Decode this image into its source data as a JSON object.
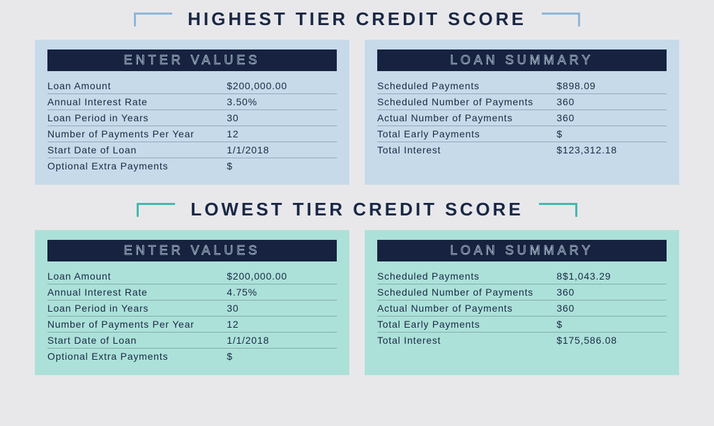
{
  "highest": {
    "title": "HIGHEST TIER CREDIT SCORE",
    "accent": "#8fb6d6",
    "panel_bg": "#c6daea",
    "enter_values": {
      "header": "ENTER VALUES",
      "rows": [
        {
          "label": "Loan Amount",
          "value": "$200,000.00"
        },
        {
          "label": "Annual Interest Rate",
          "value": "3.50%"
        },
        {
          "label": "Loan Period in Years",
          "value": "30"
        },
        {
          "label": "Number of Payments Per Year",
          "value": "12"
        },
        {
          "label": "Start Date of Loan",
          "value": "1/1/2018"
        },
        {
          "label": "Optional Extra Payments",
          "value": "$"
        }
      ]
    },
    "loan_summary": {
      "header": "LOAN SUMMARY",
      "rows": [
        {
          "label": "Scheduled Payments",
          "value": "$898.09"
        },
        {
          "label": "Scheduled Number of Payments",
          "value": "360"
        },
        {
          "label": "Actual Number of Payments",
          "value": "360"
        },
        {
          "label": "Total Early Payments",
          "value": "$"
        },
        {
          "label": "Total Interest",
          "value": "$123,312.18"
        }
      ]
    }
  },
  "lowest": {
    "title": "LOWEST TIER CREDIT SCORE",
    "accent": "#45b9b0",
    "panel_bg": "#ace1d9",
    "enter_values": {
      "header": "ENTER VALUES",
      "rows": [
        {
          "label": "Loan Amount",
          "value": "$200,000.00"
        },
        {
          "label": "Annual Interest Rate",
          "value": "4.75%"
        },
        {
          "label": "Loan Period in Years",
          "value": "30"
        },
        {
          "label": "Number of Payments Per Year",
          "value": "12"
        },
        {
          "label": "Start Date of Loan",
          "value": "1/1/2018"
        },
        {
          "label": "Optional Extra Payments",
          "value": "$"
        }
      ]
    },
    "loan_summary": {
      "header": "LOAN SUMMARY",
      "rows": [
        {
          "label": "Scheduled Payments",
          "value": "8$1,043.29"
        },
        {
          "label": "Scheduled Number of Payments",
          "value": "360"
        },
        {
          "label": "Actual Number of Payments",
          "value": "360"
        },
        {
          "label": "Total Early Payments",
          "value": "$"
        },
        {
          "label": "Total Interest",
          "value": "$175,586.08"
        }
      ]
    }
  },
  "styling": {
    "page_bg": "#e8e8eb",
    "header_bar_bg": "#16223f",
    "header_text_stroke": "#cfe0ef",
    "text_color": "#1a2845",
    "row_border": "rgba(26,40,69,0.28)",
    "title_fontsize": 26,
    "panel_header_fontsize": 18,
    "row_fontsize": 14
  }
}
